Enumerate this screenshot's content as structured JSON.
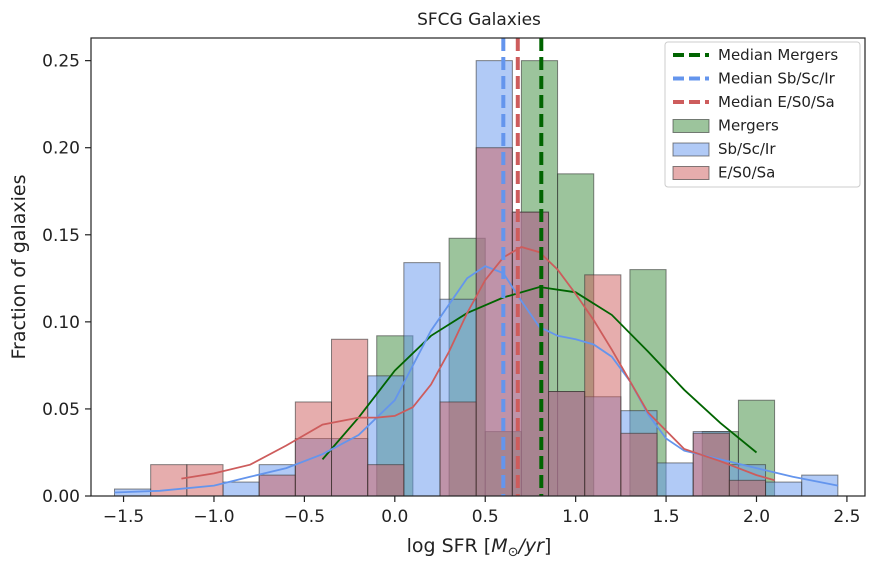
{
  "chart_data": {
    "type": "bar",
    "title": "SFCG Galaxies",
    "xlabel": "log SFR [",
    "xlabel_math": "M",
    "xlabel_sub": "⊙",
    "xlabel_tail": "/yr",
    "xlabel_end": "]",
    "ylabel": "Fraction of galaxies",
    "xlim": [
      -1.68,
      2.6
    ],
    "ylim": [
      0.0,
      0.263
    ],
    "xticks": [
      -1.5,
      -1.0,
      -0.5,
      0.0,
      0.5,
      1.0,
      1.5,
      2.0,
      2.5
    ],
    "xtick_labels": [
      "−1.5",
      "−1.0",
      "−0.5",
      "0.0",
      "0.5",
      "1.0",
      "1.5",
      "2.0",
      "2.5"
    ],
    "yticks": [
      0.0,
      0.05,
      0.1,
      0.15,
      0.2,
      0.25
    ],
    "ytick_labels": [
      "0.00",
      "0.05",
      "0.10",
      "0.15",
      "0.20",
      "0.25"
    ],
    "grid": false,
    "legend_position": "top-right",
    "series": [
      {
        "name": "Mergers",
        "color": "#3a8a3a",
        "kde_color": "#006400",
        "bins": [
          [
            -0.1,
            0.1
          ],
          [
            0.1,
            0.3
          ],
          [
            0.3,
            0.5
          ],
          [
            0.5,
            0.7
          ],
          [
            0.7,
            0.9
          ],
          [
            0.9,
            1.1
          ],
          [
            1.1,
            1.3
          ],
          [
            1.3,
            1.5
          ],
          [
            1.5,
            1.7
          ],
          [
            1.7,
            1.9
          ],
          [
            1.9,
            2.1
          ]
        ],
        "values": [
          0.092,
          0.0,
          0.148,
          0.037,
          0.25,
          0.185,
          0.0,
          0.13,
          0.0,
          0.037,
          0.055
        ],
        "kde": [
          [
            -0.4,
            0.021
          ],
          [
            -0.2,
            0.045
          ],
          [
            0.0,
            0.072
          ],
          [
            0.2,
            0.092
          ],
          [
            0.4,
            0.105
          ],
          [
            0.6,
            0.114
          ],
          [
            0.8,
            0.12
          ],
          [
            1.0,
            0.117
          ],
          [
            1.2,
            0.104
          ],
          [
            1.4,
            0.083
          ],
          [
            1.6,
            0.061
          ],
          [
            1.8,
            0.042
          ],
          [
            2.0,
            0.025
          ]
        ]
      },
      {
        "name": "Sb/Sc/Ir",
        "color": "#6495ed",
        "kde_color": "#6495ed",
        "bins": [
          [
            -1.55,
            -1.35
          ],
          [
            -1.35,
            -1.15
          ],
          [
            -1.15,
            -0.95
          ],
          [
            -0.95,
            -0.75
          ],
          [
            -0.75,
            -0.55
          ],
          [
            -0.55,
            -0.35
          ],
          [
            -0.35,
            -0.15
          ],
          [
            -0.15,
            0.05
          ],
          [
            0.05,
            0.25
          ],
          [
            0.25,
            0.45
          ],
          [
            0.45,
            0.65
          ],
          [
            0.65,
            0.85
          ],
          [
            0.85,
            1.05
          ],
          [
            1.05,
            1.25
          ],
          [
            1.25,
            1.45
          ],
          [
            1.45,
            1.65
          ],
          [
            1.65,
            1.85
          ],
          [
            1.85,
            2.05
          ],
          [
            2.05,
            2.25
          ],
          [
            2.25,
            2.45
          ]
        ],
        "values": [
          0.004,
          0.0,
          0.0,
          0.008,
          0.018,
          0.033,
          0.033,
          0.069,
          0.134,
          0.113,
          0.25,
          0.163,
          0.06,
          0.057,
          0.049,
          0.019,
          0.037,
          0.018,
          0.008,
          0.012
        ],
        "kde": [
          [
            -1.55,
            0.002
          ],
          [
            -1.3,
            0.003
          ],
          [
            -1.0,
            0.006
          ],
          [
            -0.8,
            0.011
          ],
          [
            -0.6,
            0.016
          ],
          [
            -0.4,
            0.024
          ],
          [
            -0.2,
            0.035
          ],
          [
            0.0,
            0.055
          ],
          [
            0.2,
            0.095
          ],
          [
            0.4,
            0.125
          ],
          [
            0.5,
            0.132
          ],
          [
            0.6,
            0.128
          ],
          [
            0.7,
            0.112
          ],
          [
            0.8,
            0.097
          ],
          [
            0.9,
            0.092
          ],
          [
            1.0,
            0.09
          ],
          [
            1.1,
            0.087
          ],
          [
            1.2,
            0.08
          ],
          [
            1.3,
            0.066
          ],
          [
            1.4,
            0.047
          ],
          [
            1.5,
            0.033
          ],
          [
            1.6,
            0.026
          ],
          [
            1.8,
            0.021
          ],
          [
            2.0,
            0.016
          ],
          [
            2.2,
            0.011
          ],
          [
            2.45,
            0.006
          ]
        ]
      },
      {
        "name": "E/S0/Sa",
        "color": "#cd5c5c",
        "kde_color": "#cd5c5c",
        "bins": [
          [
            -1.35,
            -1.15
          ],
          [
            -1.15,
            -0.95
          ],
          [
            -0.75,
            -0.55
          ],
          [
            -0.55,
            -0.35
          ],
          [
            -0.35,
            -0.15
          ],
          [
            -0.15,
            0.05
          ],
          [
            0.25,
            0.45
          ],
          [
            0.45,
            0.65
          ],
          [
            0.65,
            0.85
          ],
          [
            0.85,
            1.05
          ],
          [
            1.05,
            1.25
          ],
          [
            1.25,
            1.45
          ],
          [
            1.65,
            1.85
          ],
          [
            1.85,
            2.05
          ]
        ],
        "values": [
          0.018,
          0.018,
          0.012,
          0.054,
          0.09,
          0.018,
          0.054,
          0.2,
          0.163,
          0.06,
          0.127,
          0.036,
          0.036,
          0.009
        ],
        "kde": [
          [
            -1.18,
            0.01
          ],
          [
            -1.0,
            0.013
          ],
          [
            -0.8,
            0.018
          ],
          [
            -0.6,
            0.029
          ],
          [
            -0.4,
            0.041
          ],
          [
            -0.2,
            0.045
          ],
          [
            -0.1,
            0.045
          ],
          [
            0.0,
            0.046
          ],
          [
            0.1,
            0.051
          ],
          [
            0.2,
            0.064
          ],
          [
            0.3,
            0.083
          ],
          [
            0.4,
            0.105
          ],
          [
            0.5,
            0.124
          ],
          [
            0.6,
            0.137
          ],
          [
            0.7,
            0.143
          ],
          [
            0.8,
            0.14
          ],
          [
            0.9,
            0.13
          ],
          [
            1.0,
            0.116
          ],
          [
            1.1,
            0.101
          ],
          [
            1.2,
            0.084
          ],
          [
            1.3,
            0.066
          ],
          [
            1.4,
            0.048
          ],
          [
            1.6,
            0.027
          ],
          [
            1.8,
            0.02
          ],
          [
            2.0,
            0.012
          ],
          [
            2.1,
            0.009
          ]
        ]
      }
    ],
    "medians": [
      {
        "name": "Median Mergers",
        "value": 0.81,
        "color": "#006400"
      },
      {
        "name": "Median Sb/Sc/Ir",
        "value": 0.6,
        "color": "#6495ed"
      },
      {
        "name": "Median E/S0/Sa",
        "value": 0.68,
        "color": "#cd5c5c"
      }
    ]
  }
}
